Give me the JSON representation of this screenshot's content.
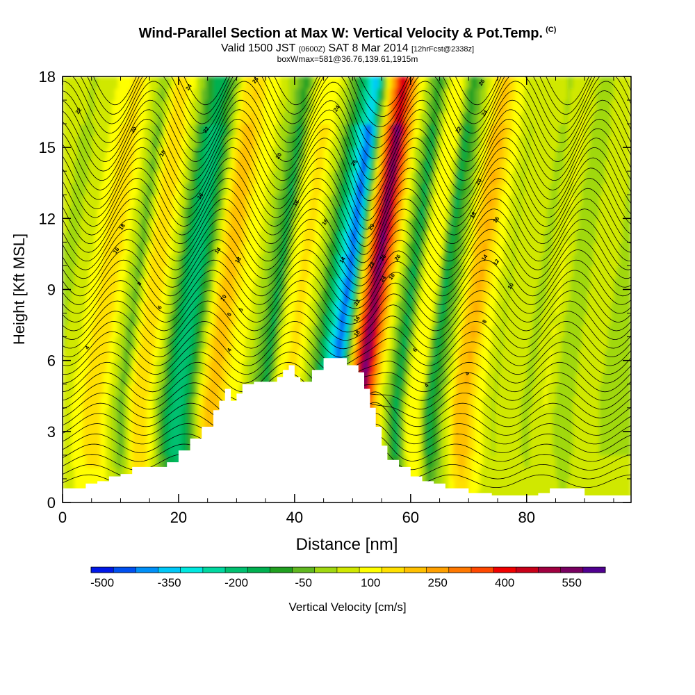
{
  "header": {
    "title": "Wind-Parallel Section at Max W: Vertical Velocity & Pot.Temp.",
    "copyright": "(C)",
    "subtitle_a": "Valid 1500 JST",
    "subtitle_b": "(0600Z)",
    "subtitle_c": "SAT 8 Mar 2014",
    "subtitle_d": "[12hrFcst@2338z]",
    "info": "boxWmax=581@36.76,139.61,1915m"
  },
  "chart_data": {
    "type": "heatmap",
    "xlabel": "Distance [nm]",
    "ylabel": "Height [Kft MSL]",
    "xlim": [
      0,
      98
    ],
    "ylim": [
      0,
      18
    ],
    "x_ticks": [
      "0",
      "20",
      "40",
      "60",
      "80"
    ],
    "x_tick_values": [
      0,
      20,
      40,
      60,
      80
    ],
    "y_ticks": [
      "0",
      "3",
      "6",
      "9",
      "12",
      "15",
      "18"
    ],
    "y_tick_values": [
      0,
      3,
      6,
      9,
      12,
      15,
      18
    ],
    "grid": false,
    "colorbar": {
      "label": "Vertical Velocity [cm/s]",
      "tick_labels": [
        "-500",
        "-350",
        "-200",
        "-50",
        "100",
        "250",
        "400",
        "550"
      ],
      "levels": [
        -500,
        -450,
        -400,
        -350,
        -300,
        -250,
        -200,
        -150,
        -100,
        -50,
        0,
        50,
        100,
        150,
        200,
        250,
        300,
        350,
        400,
        450,
        500,
        550,
        600
      ],
      "colors": [
        "#0018e8",
        "#0050f0",
        "#0090f8",
        "#00c8f8",
        "#00e8e0",
        "#00d8a0",
        "#00c070",
        "#00b050",
        "#20a020",
        "#60b820",
        "#a0d810",
        "#d0e800",
        "#ffff00",
        "#ffe000",
        "#ffc000",
        "#ffa000",
        "#ff7800",
        "#ff4800",
        "#f00000",
        "#c80018",
        "#a00040",
        "#780060",
        "#500090"
      ]
    },
    "terrain": [
      [
        0,
        0.6
      ],
      [
        2,
        0.6
      ],
      [
        4,
        0.8
      ],
      [
        6,
        0.9
      ],
      [
        8,
        1.1
      ],
      [
        10,
        1.2
      ],
      [
        12,
        1.5
      ],
      [
        16,
        1.5
      ],
      [
        18,
        1.7
      ],
      [
        20,
        2.2
      ],
      [
        22,
        2.7
      ],
      [
        24,
        3.2
      ],
      [
        26,
        3.9
      ],
      [
        27,
        4.3
      ],
      [
        28,
        4.8
      ],
      [
        29,
        4.3
      ],
      [
        30,
        4.6
      ],
      [
        31,
        5.0
      ],
      [
        33,
        5.1
      ],
      [
        35,
        5.1
      ],
      [
        37,
        5.3
      ],
      [
        38,
        5.6
      ],
      [
        39,
        5.8
      ],
      [
        40,
        5.3
      ],
      [
        41,
        5.1
      ],
      [
        43,
        5.6
      ],
      [
        45,
        6.1
      ],
      [
        47,
        6.1
      ],
      [
        49,
        5.8
      ],
      [
        51,
        5.5
      ],
      [
        52,
        4.8
      ],
      [
        53,
        4.0
      ],
      [
        54,
        3.2
      ],
      [
        55,
        2.4
      ],
      [
        56,
        1.8
      ],
      [
        58,
        1.5
      ],
      [
        60,
        1.1
      ],
      [
        62,
        0.9
      ],
      [
        64,
        0.8
      ],
      [
        66,
        0.6
      ],
      [
        70,
        0.4
      ],
      [
        74,
        0.3
      ],
      [
        78,
        0.3
      ],
      [
        82,
        0.4
      ],
      [
        84,
        0.6
      ],
      [
        88,
        0.6
      ],
      [
        90,
        0.3
      ],
      [
        98,
        0.3
      ]
    ],
    "series": [
      {
        "name": "Vertical Velocity",
        "columns": [
          {
            "x": 0,
            "w": 40
          },
          {
            "x": 3,
            "w": 10
          },
          {
            "x": 6,
            "w": 60
          },
          {
            "x": 9,
            "w": 140
          },
          {
            "x": 11,
            "w": 150
          },
          {
            "x": 13,
            "w": 60
          },
          {
            "x": 15,
            "w": -60
          },
          {
            "x": 17,
            "w": 150
          },
          {
            "x": 19,
            "w": 150
          },
          {
            "x": 21,
            "w": 30
          },
          {
            "x": 23,
            "w": -150
          },
          {
            "x": 25,
            "w": -220
          },
          {
            "x": 27,
            "w": -80
          },
          {
            "x": 29,
            "w": 160
          },
          {
            "x": 31,
            "w": 210
          },
          {
            "x": 33,
            "w": 120
          },
          {
            "x": 35,
            "w": 80
          },
          {
            "x": 38,
            "w": -50
          },
          {
            "x": 39.5,
            "w": -150
          },
          {
            "x": 41.5,
            "w": 110
          },
          {
            "x": 44,
            "w": 140
          },
          {
            "x": 46,
            "w": 40
          },
          {
            "x": 48,
            "w": -110
          },
          {
            "x": 50,
            "w": -300
          },
          {
            "x": 51.5,
            "w": -470
          },
          {
            "x": 53,
            "w": -100
          },
          {
            "x": 54,
            "w": 200
          },
          {
            "x": 55.2,
            "w": 420
          },
          {
            "x": 56.3,
            "w": 581
          },
          {
            "x": 57.5,
            "w": 380
          },
          {
            "x": 59,
            "w": 150
          },
          {
            "x": 61,
            "w": -40
          },
          {
            "x": 62.5,
            "w": -160
          },
          {
            "x": 64.5,
            "w": 110
          },
          {
            "x": 66.5,
            "w": 90
          },
          {
            "x": 68,
            "w": -150
          },
          {
            "x": 70,
            "w": -40
          },
          {
            "x": 72.5,
            "w": 180
          },
          {
            "x": 74,
            "w": 230
          },
          {
            "x": 76,
            "w": 120
          },
          {
            "x": 79,
            "w": 20
          },
          {
            "x": 82,
            "w": 60
          },
          {
            "x": 85,
            "w": 10
          },
          {
            "x": 88,
            "w": 80
          },
          {
            "x": 91,
            "w": -20
          },
          {
            "x": 94,
            "w": 50
          },
          {
            "x": 98,
            "w": 20
          }
        ]
      }
    ],
    "theta_labels": [
      {
        "x": 3,
        "y": 16.5,
        "text": "22"
      },
      {
        "x": 12.5,
        "y": 15.7,
        "text": "20"
      },
      {
        "x": 17.5,
        "y": 14.7,
        "text": "18"
      },
      {
        "x": 22,
        "y": 17.5,
        "text": "24"
      },
      {
        "x": 25,
        "y": 15.7,
        "text": "22"
      },
      {
        "x": 33.5,
        "y": 17.8,
        "text": "26"
      },
      {
        "x": 24,
        "y": 12.9,
        "text": "16"
      },
      {
        "x": 10.5,
        "y": 11.6,
        "text": "18"
      },
      {
        "x": 9.5,
        "y": 10.6,
        "text": "16"
      },
      {
        "x": 27,
        "y": 10.6,
        "text": "14"
      },
      {
        "x": 30.5,
        "y": 10.2,
        "text": "18"
      },
      {
        "x": 37.5,
        "y": 14.6,
        "text": "20"
      },
      {
        "x": 40.5,
        "y": 12.6,
        "text": "16"
      },
      {
        "x": 45.5,
        "y": 11.8,
        "text": "16"
      },
      {
        "x": 47.5,
        "y": 16.6,
        "text": "24"
      },
      {
        "x": 50.5,
        "y": 14.3,
        "text": "26"
      },
      {
        "x": 48.5,
        "y": 10.2,
        "text": "14"
      },
      {
        "x": 53.5,
        "y": 11.6,
        "text": "20"
      },
      {
        "x": 53.5,
        "y": 10.0,
        "text": "28"
      },
      {
        "x": 55.5,
        "y": 10.3,
        "text": "26"
      },
      {
        "x": 58,
        "y": 10.3,
        "text": "26"
      },
      {
        "x": 55.5,
        "y": 9.4,
        "text": "24"
      },
      {
        "x": 57,
        "y": 9.5,
        "text": "16"
      },
      {
        "x": 51,
        "y": 8.4,
        "text": "32"
      },
      {
        "x": 51,
        "y": 7.7,
        "text": "16"
      },
      {
        "x": 51,
        "y": 7.1,
        "text": "18"
      },
      {
        "x": 13.5,
        "y": 9.2,
        "text": "8"
      },
      {
        "x": 17,
        "y": 8.2,
        "text": "6"
      },
      {
        "x": 28,
        "y": 8.6,
        "text": "10"
      },
      {
        "x": 29,
        "y": 7.9,
        "text": "6"
      },
      {
        "x": 31,
        "y": 8.1,
        "text": "6"
      },
      {
        "x": 29,
        "y": 6.4,
        "text": "4"
      },
      {
        "x": 4.5,
        "y": 6.5,
        "text": "4"
      },
      {
        "x": 61,
        "y": 6.4,
        "text": "6"
      },
      {
        "x": 63,
        "y": 4.9,
        "text": "4"
      },
      {
        "x": 70,
        "y": 5.4,
        "text": "4"
      },
      {
        "x": 72.5,
        "y": 17.7,
        "text": "26"
      },
      {
        "x": 68.5,
        "y": 15.7,
        "text": "22"
      },
      {
        "x": 73,
        "y": 16.4,
        "text": "24"
      },
      {
        "x": 72,
        "y": 13.5,
        "text": "20"
      },
      {
        "x": 71,
        "y": 12.1,
        "text": "18"
      },
      {
        "x": 75,
        "y": 11.9,
        "text": "16"
      },
      {
        "x": 73,
        "y": 10.3,
        "text": "14"
      },
      {
        "x": 75,
        "y": 10.1,
        "text": "12"
      },
      {
        "x": 77.5,
        "y": 9.1,
        "text": "10"
      },
      {
        "x": 73,
        "y": 7.6,
        "text": "8"
      }
    ]
  }
}
